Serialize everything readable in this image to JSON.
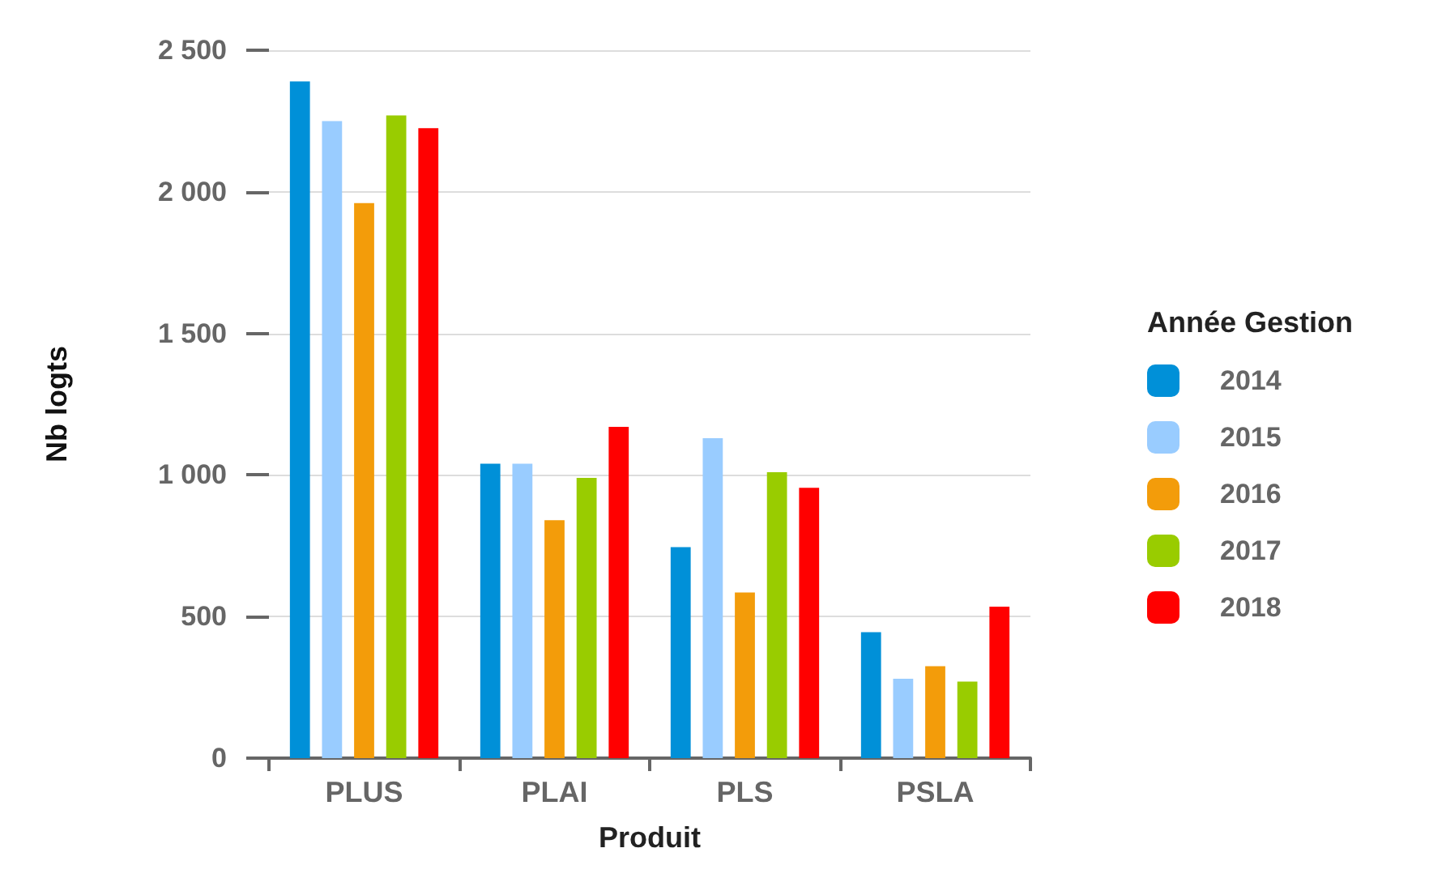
{
  "chart_data": {
    "type": "bar",
    "xlabel": "Produit",
    "ylabel": "Nb logts",
    "legend_title": "Année Gestion",
    "categories": [
      "PLUS",
      "PLAI",
      "PLS",
      "PSLA"
    ],
    "series": [
      {
        "name": "2014",
        "color": "#0090d8",
        "values": [
          2390,
          1040,
          745,
          445
        ]
      },
      {
        "name": "2015",
        "color": "#99ccff",
        "values": [
          2250,
          1040,
          1130,
          280
        ]
      },
      {
        "name": "2016",
        "color": "#f39c0a",
        "values": [
          1960,
          840,
          585,
          325
        ]
      },
      {
        "name": "2017",
        "color": "#99cc00",
        "values": [
          2270,
          990,
          1010,
          270
        ]
      },
      {
        "name": "2018",
        "color": "#ff0000",
        "values": [
          2225,
          1170,
          955,
          535
        ]
      }
    ],
    "ylim": [
      0,
      2500
    ],
    "yticks": [
      {
        "value": 0,
        "label": "0"
      },
      {
        "value": 500,
        "label": "500"
      },
      {
        "value": 1000,
        "label": "1 000"
      },
      {
        "value": 1500,
        "label": "1 500"
      },
      {
        "value": 2000,
        "label": "2 000"
      },
      {
        "value": 2500,
        "label": "2 500"
      }
    ],
    "grid": "y",
    "legend": "right"
  }
}
